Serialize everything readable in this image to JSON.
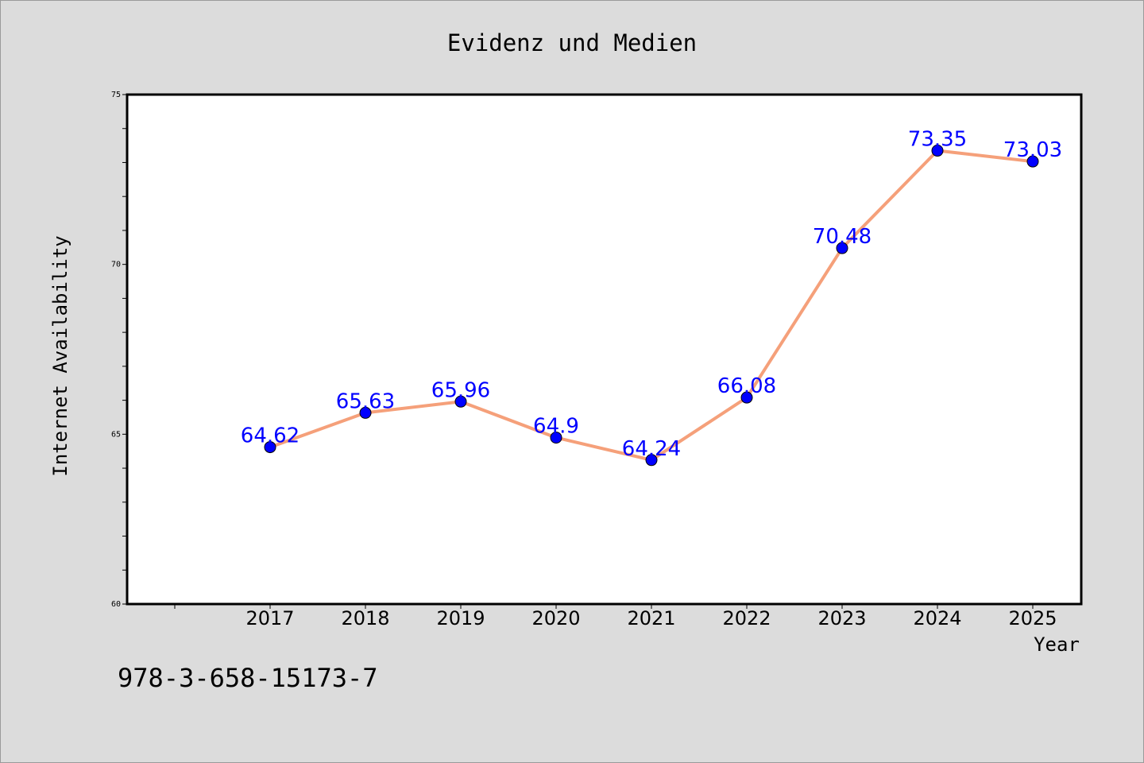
{
  "chart_data": {
    "type": "line",
    "title": "Evidenz und Medien",
    "xlabel": "Year",
    "ylabel": "Internet Availability",
    "categories": [
      "2017",
      "2018",
      "2019",
      "2020",
      "2021",
      "2022",
      "2023",
      "2024",
      "2025"
    ],
    "series": [
      {
        "values": [
          64.62,
          65.63,
          65.96,
          64.9,
          64.24,
          66.08,
          70.48,
          73.35,
          73.03
        ],
        "labels": [
          "64.62",
          "65.63",
          "65.96",
          "64.9",
          "64.24",
          "66.08",
          "70.48",
          "73.35",
          "73.03"
        ],
        "line_color": "#f5a07a",
        "marker_color": "#0000ff"
      }
    ],
    "ylim": [
      60,
      75
    ],
    "yticks": [
      "60",
      "65",
      "70",
      "75"
    ],
    "grid": false,
    "legend": "none"
  },
  "footer_text": "978-3-658-15173-7"
}
